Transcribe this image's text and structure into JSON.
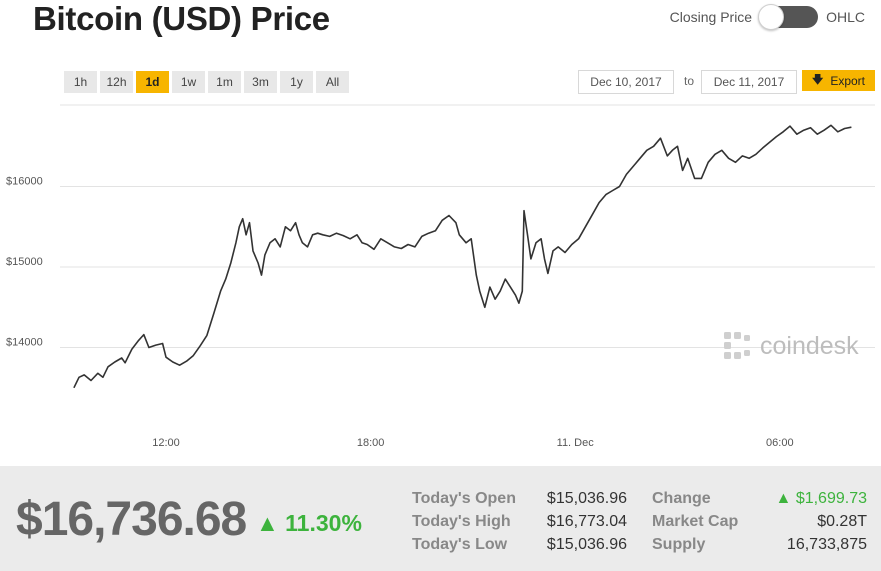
{
  "header": {
    "title": "Bitcoin (USD) Price",
    "toggle_left": "Closing Price",
    "toggle_right": "OHLC"
  },
  "range_buttons": [
    "1h",
    "12h",
    "1d",
    "1w",
    "1m",
    "3m",
    "1y",
    "All"
  ],
  "active_range": "1d",
  "date_range": {
    "from": "Dec 10, 2017",
    "to_label": "to",
    "to": "Dec 11, 2017"
  },
  "export_label": "Export",
  "watermark": "coindesk",
  "colors": {
    "accent": "#f7b500",
    "line": "#333333",
    "positive": "#3db33d"
  },
  "chart_data": {
    "type": "line",
    "ylim": [
      12900,
      17450
    ],
    "yticks": [
      14000,
      15000,
      16000
    ],
    "ytick_labels": [
      "$14000",
      "$15000",
      "$16000"
    ],
    "xticks": [
      {
        "label": "12:00",
        "hour": 12
      },
      {
        "label": "18:00",
        "hour": 18
      },
      {
        "label": "11. Dec",
        "hour": 24
      },
      {
        "label": "06:00",
        "hour": 30
      }
    ],
    "xlim_hours": [
      9.3,
      32.1
    ],
    "grid": true,
    "points": [
      [
        9.3,
        13500
      ],
      [
        9.45,
        13630
      ],
      [
        9.6,
        13660
      ],
      [
        9.8,
        13590
      ],
      [
        10.0,
        13680
      ],
      [
        10.15,
        13630
      ],
      [
        10.3,
        13760
      ],
      [
        10.5,
        13820
      ],
      [
        10.7,
        13870
      ],
      [
        10.8,
        13810
      ],
      [
        11.0,
        13980
      ],
      [
        11.2,
        14090
      ],
      [
        11.35,
        14160
      ],
      [
        11.5,
        14000
      ],
      [
        11.7,
        14030
      ],
      [
        11.9,
        14050
      ],
      [
        12.0,
        13880
      ],
      [
        12.2,
        13820
      ],
      [
        12.4,
        13780
      ],
      [
        12.6,
        13830
      ],
      [
        12.8,
        13900
      ],
      [
        13.0,
        14020
      ],
      [
        13.2,
        14150
      ],
      [
        13.4,
        14420
      ],
      [
        13.6,
        14700
      ],
      [
        13.75,
        14850
      ],
      [
        13.9,
        15050
      ],
      [
        14.05,
        15300
      ],
      [
        14.15,
        15500
      ],
      [
        14.25,
        15600
      ],
      [
        14.35,
        15400
      ],
      [
        14.45,
        15550
      ],
      [
        14.55,
        15200
      ],
      [
        14.7,
        15050
      ],
      [
        14.8,
        14900
      ],
      [
        14.9,
        15150
      ],
      [
        15.05,
        15300
      ],
      [
        15.2,
        15350
      ],
      [
        15.35,
        15250
      ],
      [
        15.5,
        15500
      ],
      [
        15.65,
        15450
      ],
      [
        15.8,
        15550
      ],
      [
        15.9,
        15400
      ],
      [
        16.0,
        15300
      ],
      [
        16.15,
        15250
      ],
      [
        16.3,
        15400
      ],
      [
        16.45,
        15420
      ],
      [
        16.6,
        15400
      ],
      [
        16.8,
        15380
      ],
      [
        17.0,
        15420
      ],
      [
        17.2,
        15390
      ],
      [
        17.4,
        15350
      ],
      [
        17.6,
        15400
      ],
      [
        17.75,
        15300
      ],
      [
        17.9,
        15280
      ],
      [
        18.1,
        15220
      ],
      [
        18.3,
        15350
      ],
      [
        18.5,
        15300
      ],
      [
        18.7,
        15250
      ],
      [
        18.9,
        15230
      ],
      [
        19.1,
        15280
      ],
      [
        19.3,
        15250
      ],
      [
        19.5,
        15380
      ],
      [
        19.7,
        15420
      ],
      [
        19.9,
        15450
      ],
      [
        20.1,
        15580
      ],
      [
        20.3,
        15640
      ],
      [
        20.5,
        15550
      ],
      [
        20.6,
        15400
      ],
      [
        20.8,
        15300
      ],
      [
        20.95,
        15350
      ],
      [
        21.1,
        14900
      ],
      [
        21.2,
        14700
      ],
      [
        21.35,
        14500
      ],
      [
        21.5,
        14750
      ],
      [
        21.65,
        14600
      ],
      [
        21.8,
        14700
      ],
      [
        21.95,
        14850
      ],
      [
        22.1,
        14750
      ],
      [
        22.25,
        14650
      ],
      [
        22.35,
        14550
      ],
      [
        22.45,
        14700
      ],
      [
        22.5,
        15700
      ],
      [
        22.6,
        15400
      ],
      [
        22.7,
        15100
      ],
      [
        22.85,
        15300
      ],
      [
        23.0,
        15350
      ],
      [
        23.1,
        15100
      ],
      [
        23.2,
        14920
      ],
      [
        23.35,
        15200
      ],
      [
        23.5,
        15250
      ],
      [
        23.7,
        15180
      ],
      [
        23.9,
        15280
      ],
      [
        24.1,
        15350
      ],
      [
        24.3,
        15500
      ],
      [
        24.5,
        15650
      ],
      [
        24.7,
        15800
      ],
      [
        24.9,
        15900
      ],
      [
        25.1,
        15950
      ],
      [
        25.3,
        16000
      ],
      [
        25.5,
        16150
      ],
      [
        25.7,
        16250
      ],
      [
        25.9,
        16350
      ],
      [
        26.1,
        16450
      ],
      [
        26.3,
        16500
      ],
      [
        26.5,
        16600
      ],
      [
        26.7,
        16380
      ],
      [
        26.85,
        16450
      ],
      [
        27.0,
        16500
      ],
      [
        27.15,
        16200
      ],
      [
        27.3,
        16350
      ],
      [
        27.5,
        16100
      ],
      [
        27.7,
        16100
      ],
      [
        27.9,
        16300
      ],
      [
        28.1,
        16400
      ],
      [
        28.3,
        16450
      ],
      [
        28.5,
        16350
      ],
      [
        28.7,
        16300
      ],
      [
        28.9,
        16380
      ],
      [
        29.1,
        16350
      ],
      [
        29.3,
        16400
      ],
      [
        29.5,
        16480
      ],
      [
        29.7,
        16550
      ],
      [
        29.9,
        16620
      ],
      [
        30.1,
        16680
      ],
      [
        30.3,
        16750
      ],
      [
        30.5,
        16650
      ],
      [
        30.7,
        16700
      ],
      [
        30.9,
        16730
      ],
      [
        31.1,
        16650
      ],
      [
        31.3,
        16700
      ],
      [
        31.5,
        16760
      ],
      [
        31.7,
        16680
      ],
      [
        31.9,
        16720
      ],
      [
        32.1,
        16737
      ]
    ]
  },
  "footer": {
    "price": "$16,736.68",
    "change_pct": "▲ 11.30%",
    "stats_left": [
      {
        "label": "Today's Open",
        "value": "$15,036.96"
      },
      {
        "label": "Today's High",
        "value": "$16,773.04"
      },
      {
        "label": "Today's Low",
        "value": "$15,036.96"
      }
    ],
    "stats_right": [
      {
        "label": "Change",
        "value": "▲ $1,699.73",
        "positive": true
      },
      {
        "label": "Market Cap",
        "value": "$0.28T",
        "positive": false
      },
      {
        "label": "Supply",
        "value": "16,733,875",
        "positive": false
      }
    ]
  }
}
